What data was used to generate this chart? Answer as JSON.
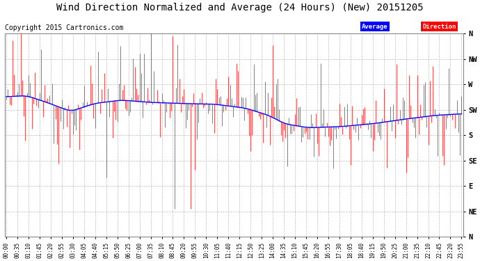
{
  "title": "Wind Direction Normalized and Average (24 Hours) (New) 20151205",
  "copyright": "Copyright 2015 Cartronics.com",
  "y_labels": [
    "N",
    "NW",
    "W",
    "SW",
    "S",
    "SE",
    "E",
    "NE",
    "N"
  ],
  "y_values": [
    360,
    315,
    270,
    225,
    180,
    135,
    90,
    45,
    0
  ],
  "x_labels": [
    "00:00",
    "00:35",
    "01:10",
    "01:45",
    "02:20",
    "02:55",
    "03:30",
    "04:05",
    "04:40",
    "05:15",
    "05:50",
    "06:25",
    "07:00",
    "07:35",
    "08:10",
    "08:45",
    "09:20",
    "09:55",
    "10:30",
    "11:05",
    "11:40",
    "12:15",
    "12:50",
    "13:25",
    "14:00",
    "14:35",
    "15:10",
    "15:45",
    "16:20",
    "16:55",
    "17:30",
    "18:05",
    "18:40",
    "19:15",
    "19:50",
    "20:25",
    "21:00",
    "21:35",
    "22:10",
    "22:45",
    "23:20",
    "23:55"
  ],
  "ylim": [
    0,
    360
  ],
  "legend_label_avg": "Average",
  "legend_label_dir": "Direction",
  "bar_color": "#ff0000",
  "avg_color": "#0000ff",
  "grid_color": "#bbbbbb",
  "bg_color": "#ffffff",
  "plot_bg_color": "#ffffff",
  "title_fontsize": 10,
  "copyright_fontsize": 7,
  "tick_fontsize": 5.5,
  "ylabel_fontsize": 7.5,
  "n_points": 288,
  "avg_ctrl_x": [
    0,
    12,
    25,
    40,
    55,
    72,
    90,
    110,
    130,
    150,
    165,
    175,
    190,
    210,
    230,
    250,
    270,
    288
  ],
  "avg_ctrl_y": [
    248,
    250,
    238,
    222,
    236,
    242,
    238,
    236,
    235,
    228,
    215,
    200,
    193,
    195,
    200,
    208,
    215,
    218
  ]
}
